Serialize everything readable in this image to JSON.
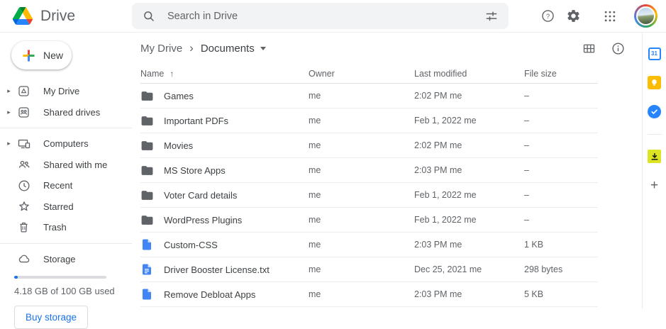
{
  "header": {
    "app_name": "Drive",
    "search_placeholder": "Search in Drive"
  },
  "sidebar": {
    "new_label": "New",
    "items_top": [
      {
        "label": "My Drive",
        "icon": "my-drive",
        "expandable": true
      },
      {
        "label": "Shared drives",
        "icon": "shared-drives",
        "expandable": true
      }
    ],
    "items_main": [
      {
        "label": "Computers",
        "icon": "computers",
        "expandable": true
      },
      {
        "label": "Shared with me",
        "icon": "shared-with-me",
        "expandable": false
      },
      {
        "label": "Recent",
        "icon": "recent",
        "expandable": false
      },
      {
        "label": "Starred",
        "icon": "starred",
        "expandable": false
      },
      {
        "label": "Trash",
        "icon": "trash",
        "expandable": false
      }
    ],
    "storage": {
      "label": "Storage",
      "used_percent": 4.18,
      "usage_text": "4.18 GB of 100 GB used",
      "buy_label": "Buy storage"
    }
  },
  "breadcrumb": {
    "root": "My Drive",
    "separator": "›",
    "current": "Documents"
  },
  "table": {
    "headers": {
      "name": "Name",
      "sort": "↑",
      "owner": "Owner",
      "modified": "Last modified",
      "size": "File size"
    },
    "rows": [
      {
        "type": "folder",
        "name": "Games",
        "owner": "me",
        "modified": "2:02 PM me",
        "size": "–"
      },
      {
        "type": "folder",
        "name": "Important PDFs",
        "owner": "me",
        "modified": "Feb 1, 2022 me",
        "size": "–"
      },
      {
        "type": "folder",
        "name": "Movies",
        "owner": "me",
        "modified": "2:02 PM me",
        "size": "–"
      },
      {
        "type": "folder",
        "name": "MS Store Apps",
        "owner": "me",
        "modified": "2:03 PM me",
        "size": "–"
      },
      {
        "type": "folder",
        "name": "Voter Card details",
        "owner": "me",
        "modified": "Feb 1, 2022 me",
        "size": "–"
      },
      {
        "type": "folder",
        "name": "WordPress Plugins",
        "owner": "me",
        "modified": "Feb 1, 2022 me",
        "size": "–"
      },
      {
        "type": "file",
        "name": "Custom-CSS",
        "owner": "me",
        "modified": "2:03 PM me",
        "size": "1 KB"
      },
      {
        "type": "file-text",
        "name": "Driver Booster License.txt",
        "owner": "me",
        "modified": "Dec 25, 2021 me",
        "size": "298 bytes"
      },
      {
        "type": "file",
        "name": "Remove Debloat Apps",
        "owner": "me",
        "modified": "2:03 PM me",
        "size": "5 KB"
      }
    ]
  },
  "rail": {
    "calendar_text": "31",
    "plus_label": "+",
    "icons": [
      "calendar",
      "keep",
      "tasks",
      "downloader",
      "add"
    ]
  },
  "colors": {
    "accent_blue": "#1a73e8",
    "file_blue": "#4285f4",
    "icon_gray": "#5f6368",
    "text_dark": "#3c4043",
    "search_bg": "#f1f3f4",
    "border": "#e8eaed",
    "keep_yellow": "#fbbc04",
    "downloader_yellow": "#dde424"
  }
}
